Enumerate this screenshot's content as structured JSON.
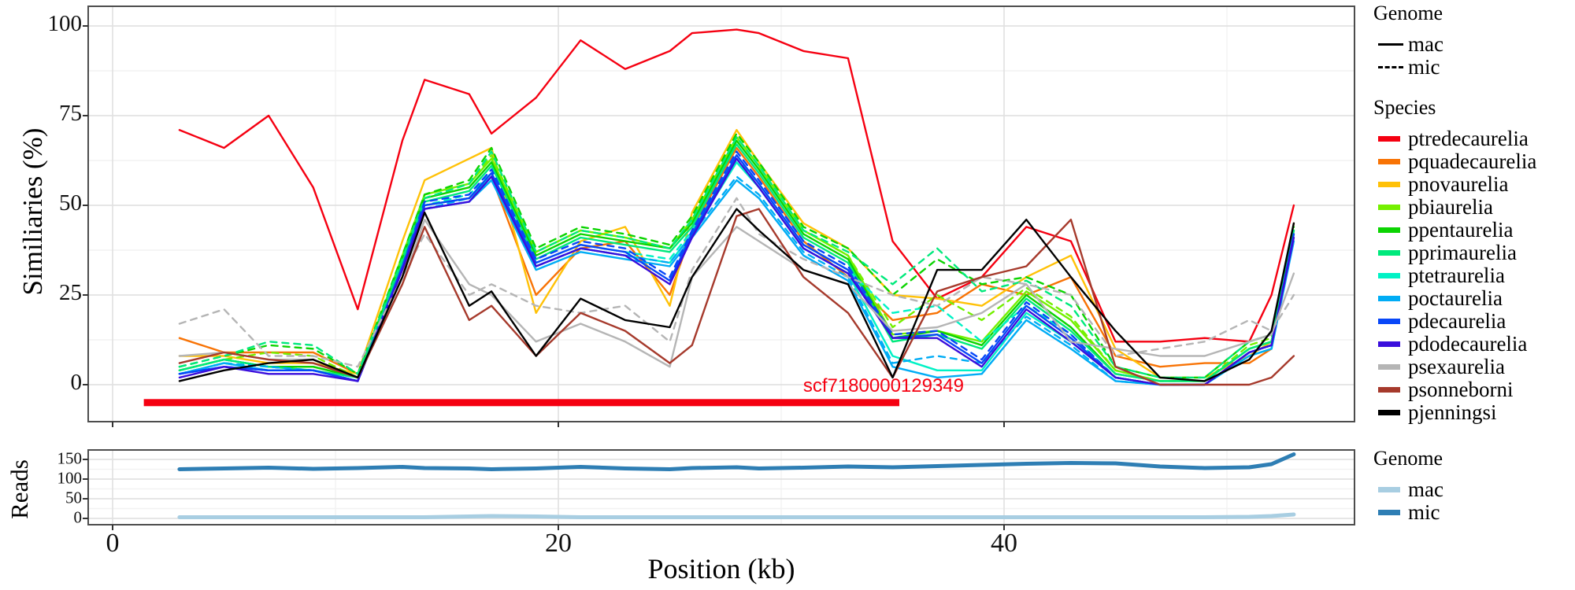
{
  "axes": {
    "xlabel": "Position (kb)",
    "x_major": [
      0,
      20,
      40
    ],
    "x_minor": [
      10,
      30,
      50
    ],
    "main": {
      "ylabel": "Similiaries (%)",
      "y_major": [
        0,
        25,
        50,
        75,
        100
      ],
      "y_minor": [
        12.5,
        37.5,
        62.5,
        87.5
      ],
      "ylim": [
        -10,
        105
      ],
      "xlim": [
        -1.1,
        55.8
      ]
    },
    "reads": {
      "ylabel": "Reads",
      "y_major": [
        0,
        50,
        100,
        150
      ],
      "y_minor": [
        25,
        75,
        125
      ],
      "ylim": [
        -16,
        174
      ]
    }
  },
  "annotation": {
    "scaffold_label": "scf7180000129349",
    "bar_start_kb": 1.4,
    "bar_end_kb": 35.3,
    "bar_value": -5,
    "color": "#f50011"
  },
  "legend_genome": {
    "title": "Genome",
    "items": [
      {
        "label": "mac",
        "dash": "solid"
      },
      {
        "label": "mic",
        "dash": "dashed"
      }
    ]
  },
  "legend_species": {
    "title": "Species",
    "items": [
      {
        "label": "ptredecaurelia",
        "color": "#f50011"
      },
      {
        "label": "pquadecaurelia",
        "color": "#f87305"
      },
      {
        "label": "pnovaurelia",
        "color": "#ffc107"
      },
      {
        "label": "pbiaurelia",
        "color": "#74f000"
      },
      {
        "label": "ppentaurelia",
        "color": "#0cd402"
      },
      {
        "label": "pprimaurelia",
        "color": "#00e97c"
      },
      {
        "label": "ptetraurelia",
        "color": "#00f2c5"
      },
      {
        "label": "poctaurelia",
        "color": "#00acf5"
      },
      {
        "label": "pdecaurelia",
        "color": "#0847f8"
      },
      {
        "label": "pdodecaurelia",
        "color": "#3a0edc"
      },
      {
        "label": "psexaurelia",
        "color": "#b5b5b5"
      },
      {
        "label": "psonneborni",
        "color": "#a63a2c"
      },
      {
        "label": "pjenningsi",
        "color": "#000000"
      }
    ]
  },
  "legend_reads": {
    "title": "Genome",
    "items": [
      {
        "label": "mac",
        "color": "#a8cee2"
      },
      {
        "label": "mic",
        "color": "#2e7eb4"
      }
    ]
  },
  "chart_data": [
    {
      "type": "line",
      "title": "",
      "xlabel": "Position (kb)",
      "ylabel": "Similiaries (%)",
      "ylim": [
        -10,
        105
      ],
      "grid": true,
      "legend_position": "right",
      "x": [
        3,
        5,
        7,
        9,
        11,
        13,
        14,
        16,
        17,
        19,
        21,
        23,
        25,
        26,
        28,
        29,
        31,
        33,
        35,
        37,
        39,
        41,
        43,
        45,
        47,
        49,
        51,
        52,
        53
      ],
      "series": [
        {
          "name": "ptredecaurelia",
          "genome": "mac",
          "color": "#f50011",
          "dashed": false,
          "values": [
            71,
            66,
            75,
            55,
            21,
            68,
            85,
            81,
            70,
            80,
            96,
            88,
            93,
            98,
            99,
            98,
            93,
            91,
            40,
            24,
            30,
            44,
            40,
            12,
            12,
            13,
            12,
            25,
            50
          ]
        },
        {
          "name": "pquadecaurelia",
          "genome": "mac",
          "color": "#f87305",
          "dashed": false,
          "values": [
            13,
            9,
            9,
            9,
            3,
            30,
            50,
            52,
            58,
            25,
            38,
            40,
            25,
            43,
            66,
            58,
            40,
            30,
            18,
            20,
            28,
            25,
            30,
            8,
            5,
            6,
            6,
            10,
            45
          ]
        },
        {
          "name": "pnovaurelia",
          "genome": "mac",
          "color": "#ffc107",
          "dashed": false,
          "values": [
            8,
            8,
            6,
            6,
            3,
            40,
            57,
            63,
            66,
            20,
            40,
            44,
            22,
            48,
            71,
            62,
            45,
            38,
            25,
            24,
            22,
            30,
            36,
            10,
            2,
            2,
            8,
            12,
            42
          ]
        },
        {
          "name": "pbiaurelia",
          "genome": "mac",
          "color": "#74f000",
          "dashed": false,
          "values": [
            4,
            7,
            5,
            5,
            2,
            36,
            53,
            56,
            63,
            37,
            43,
            41,
            38,
            46,
            69,
            61,
            43,
            36,
            14,
            15,
            12,
            26,
            18,
            4,
            1,
            1,
            10,
            12,
            43
          ]
        },
        {
          "name": "pbiaurelia",
          "genome": "mic",
          "color": "#74f000",
          "dashed": true,
          "values": [
            4,
            7,
            9,
            8,
            2,
            36,
            53,
            56,
            64,
            37,
            43,
            41,
            38,
            46,
            69,
            61,
            43,
            36,
            16,
            25,
            18,
            27,
            19,
            4,
            1,
            1,
            11,
            13,
            43
          ]
        },
        {
          "name": "ppentaurelia",
          "genome": "mac",
          "color": "#0cd402",
          "dashed": false,
          "values": [
            4,
            7,
            5,
            5,
            2,
            35,
            52,
            55,
            62,
            36,
            42,
            40,
            38,
            45,
            68,
            60,
            42,
            35,
            13,
            15,
            11,
            25,
            16,
            3,
            1,
            1,
            10,
            12,
            43
          ]
        },
        {
          "name": "ppentaurelia",
          "genome": "mic",
          "color": "#0cd402",
          "dashed": true,
          "values": [
            5,
            8,
            11,
            10,
            3,
            36,
            53,
            57,
            66,
            38,
            44,
            42,
            39,
            47,
            70,
            62,
            44,
            38,
            25,
            35,
            28,
            30,
            25,
            5,
            2,
            2,
            12,
            14,
            44
          ]
        },
        {
          "name": "pprimaurelia",
          "genome": "mac",
          "color": "#00e97c",
          "dashed": false,
          "values": [
            4,
            7,
            5,
            4,
            2,
            34,
            51,
            54,
            61,
            35,
            41,
            39,
            37,
            44,
            67,
            59,
            41,
            34,
            12,
            14,
            10,
            24,
            15,
            3,
            1,
            1,
            10,
            12,
            42
          ]
        },
        {
          "name": "pprimaurelia",
          "genome": "mic",
          "color": "#00e97c",
          "dashed": true,
          "values": [
            5,
            8,
            12,
            11,
            3,
            35,
            52,
            56,
            65,
            37,
            43,
            41,
            38,
            46,
            69,
            61,
            43,
            37,
            28,
            38,
            26,
            29,
            22,
            5,
            2,
            2,
            12,
            14,
            43
          ]
        },
        {
          "name": "ptetraurelia",
          "genome": "mac",
          "color": "#00f2c5",
          "dashed": false,
          "values": [
            3,
            6,
            4,
            4,
            1,
            33,
            50,
            52,
            58,
            33,
            38,
            36,
            34,
            42,
            62,
            55,
            38,
            31,
            8,
            4,
            4,
            20,
            12,
            2,
            0,
            0,
            8,
            10,
            41
          ]
        },
        {
          "name": "ptetraurelia",
          "genome": "mic",
          "color": "#00f2c5",
          "dashed": true,
          "values": [
            3,
            6,
            5,
            4,
            1,
            33,
            50,
            53,
            59,
            34,
            39,
            37,
            35,
            43,
            63,
            56,
            39,
            32,
            20,
            22,
            12,
            22,
            14,
            2,
            0,
            0,
            9,
            11,
            41
          ]
        },
        {
          "name": "poctaurelia",
          "genome": "mac",
          "color": "#00acf5",
          "dashed": false,
          "values": [
            3,
            6,
            4,
            4,
            1,
            32,
            49,
            51,
            57,
            32,
            37,
            35,
            33,
            41,
            57,
            52,
            36,
            29,
            5,
            2,
            3,
            18,
            10,
            1,
            0,
            0,
            8,
            10,
            40
          ]
        },
        {
          "name": "poctaurelia",
          "genome": "mic",
          "color": "#00acf5",
          "dashed": true,
          "values": [
            3,
            6,
            5,
            4,
            1,
            32,
            49,
            52,
            58,
            33,
            38,
            36,
            34,
            42,
            58,
            53,
            37,
            30,
            6,
            8,
            6,
            19,
            11,
            1,
            0,
            0,
            9,
            11,
            40
          ]
        },
        {
          "name": "pdecaurelia",
          "genome": "mac",
          "color": "#0847f8",
          "dashed": false,
          "values": [
            3,
            5,
            4,
            4,
            1,
            33,
            50,
            52,
            59,
            34,
            39,
            37,
            29,
            42,
            64,
            56,
            39,
            32,
            13,
            14,
            6,
            22,
            13,
            2,
            0,
            0,
            9,
            11,
            42
          ]
        },
        {
          "name": "pdecaurelia",
          "genome": "mic",
          "color": "#0847f8",
          "dashed": true,
          "values": [
            3,
            5,
            4,
            4,
            1,
            33,
            51,
            53,
            60,
            35,
            40,
            38,
            30,
            43,
            65,
            57,
            40,
            33,
            14,
            15,
            7,
            23,
            14,
            2,
            0,
            0,
            9,
            11,
            42
          ]
        },
        {
          "name": "pdodecaurelia",
          "genome": "mac",
          "color": "#3a0edc",
          "dashed": false,
          "values": [
            2,
            5,
            3,
            3,
            1,
            32,
            49,
            51,
            58,
            33,
            38,
            36,
            28,
            41,
            63,
            55,
            38,
            31,
            13,
            13,
            5,
            21,
            12,
            2,
            0,
            0,
            9,
            11,
            41
          ]
        },
        {
          "name": "psexaurelia",
          "genome": "mac",
          "color": "#b5b5b5",
          "dashed": false,
          "values": [
            8,
            9,
            7,
            7,
            2,
            28,
            46,
            28,
            25,
            12,
            17,
            12,
            5,
            30,
            44,
            40,
            32,
            28,
            15,
            16,
            20,
            28,
            12,
            10,
            8,
            8,
            12,
            14,
            31
          ]
        },
        {
          "name": "psexaurelia",
          "genome": "mic",
          "color": "#b5b5b5",
          "dashed": true,
          "values": [
            17,
            21,
            8,
            8,
            5,
            30,
            42,
            25,
            28,
            22,
            20,
            22,
            12,
            32,
            52,
            42,
            35,
            30,
            25,
            22,
            30,
            28,
            25,
            8,
            10,
            12,
            18,
            15,
            25
          ]
        },
        {
          "name": "psonneborni",
          "genome": "mac",
          "color": "#a63a2c",
          "dashed": false,
          "values": [
            6,
            9,
            7,
            6,
            2,
            28,
            44,
            18,
            22,
            8,
            20,
            15,
            6,
            11,
            47,
            49,
            30,
            20,
            2,
            26,
            30,
            33,
            46,
            5,
            0,
            0,
            0,
            2,
            8
          ]
        },
        {
          "name": "pjenningsi",
          "genome": "mac",
          "color": "#000000",
          "dashed": false,
          "values": [
            1,
            4,
            6,
            7,
            2,
            30,
            48,
            22,
            26,
            8,
            24,
            18,
            16,
            30,
            49,
            43,
            32,
            28,
            2,
            32,
            32,
            46,
            30,
            15,
            2,
            1,
            7,
            15,
            45
          ]
        }
      ]
    },
    {
      "type": "line",
      "title": "",
      "xlabel": "Position (kb)",
      "ylabel": "Reads",
      "ylim": [
        -16,
        174
      ],
      "grid": true,
      "legend_position": "right",
      "x": [
        3,
        5,
        7,
        9,
        11,
        13,
        14,
        16,
        17,
        19,
        21,
        23,
        25,
        26,
        28,
        29,
        31,
        33,
        35,
        37,
        39,
        41,
        43,
        45,
        47,
        49,
        51,
        52,
        53
      ],
      "series": [
        {
          "name": "mic",
          "genome": "mic",
          "color": "#2e7eb4",
          "dashed": false,
          "values": [
            125,
            127,
            129,
            126,
            128,
            131,
            128,
            127,
            125,
            127,
            131,
            127,
            125,
            128,
            130,
            127,
            129,
            132,
            130,
            133,
            136,
            139,
            141,
            140,
            132,
            128,
            130,
            138,
            163
          ]
        },
        {
          "name": "mac",
          "genome": "mac",
          "color": "#a8cee2",
          "dashed": false,
          "values": [
            3,
            3,
            3,
            3,
            3,
            3,
            3,
            5,
            6,
            5,
            3,
            3,
            3,
            3,
            3,
            3,
            3,
            3,
            3,
            3,
            3,
            3,
            3,
            3,
            3,
            3,
            4,
            6,
            10
          ]
        }
      ]
    }
  ]
}
